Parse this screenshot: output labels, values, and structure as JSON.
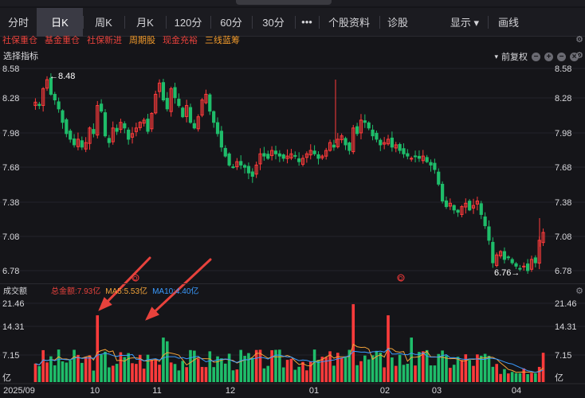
{
  "tabs": [
    "分时",
    "日K",
    "周K",
    "月K",
    "120分",
    "60分",
    "30分",
    "•••",
    "个股资料",
    "诊股",
    "显示 ▾",
    "画线"
  ],
  "active_tab": 1,
  "tools": [
    {
      "label": "社保重仓",
      "color": "#e8423c"
    },
    {
      "label": "基金重仓",
      "color": "#e8423c"
    },
    {
      "label": "社保新进",
      "color": "#e8423c"
    },
    {
      "label": "周期股",
      "color": "#f29b2b"
    },
    {
      "label": "现金充裕",
      "color": "#e8423c"
    },
    {
      "label": "三线蓝筹",
      "color": "#f29b2b"
    }
  ],
  "indicator": {
    "label": "选择指标",
    "chevron": "chevron-down-icon",
    "adjust": "前复权"
  },
  "price_axis": [
    "8.58",
    "8.28",
    "7.98",
    "7.68",
    "7.38",
    "7.08",
    "6.78"
  ],
  "high_marker": "←8.48",
  "low_marker": "6.76→",
  "volume": {
    "title": "成交额",
    "total": "总金额:7.93亿",
    "ma5": "MA5:5.53亿",
    "ma10": "MA10:4.40亿",
    "axis": [
      "21.46",
      "14.31",
      "7.15",
      "亿"
    ]
  },
  "x_axis": [
    "2025/09",
    "10",
    "11",
    "12",
    "01",
    "02",
    "03",
    "04"
  ],
  "colors": {
    "up": "#ff3b3b",
    "down": "#1fbd6a",
    "ma5": "#f2a33a",
    "ma10": "#3a9bff",
    "arrow": "#e8423c"
  },
  "chart_data": {
    "type": "candlestick",
    "close": [
      8.28,
      8.25,
      8.4,
      8.48,
      8.35,
      8.3,
      8.22,
      8.1,
      8.0,
      7.95,
      7.9,
      7.95,
      7.88,
      7.92,
      8.05,
      8.0,
      8.25,
      8.2,
      7.98,
      7.92,
      8.05,
      8.02,
      8.1,
      8.05,
      7.95,
      8.0,
      8.05,
      8.1,
      8.12,
      8.02,
      8.18,
      8.35,
      8.45,
      8.3,
      8.22,
      8.4,
      8.32,
      8.25,
      8.15,
      8.25,
      8.1,
      8.05,
      8.15,
      8.3,
      8.35,
      8.2,
      8.1,
      8.0,
      7.88,
      7.8,
      7.72,
      7.7,
      7.75,
      7.72,
      7.7,
      7.65,
      7.62,
      7.72,
      7.82,
      7.8,
      7.78,
      7.85,
      7.82,
      7.8,
      7.78,
      7.8,
      7.82,
      7.8,
      7.75,
      7.78,
      7.82,
      7.85,
      7.82,
      7.78,
      7.8,
      7.85,
      7.92,
      7.88,
      7.95,
      7.98,
      7.9,
      7.85,
      8.05,
      8.0,
      8.12,
      8.1,
      8.05,
      7.98,
      7.95,
      7.9,
      7.92,
      7.95,
      7.88,
      7.9,
      7.85,
      7.82,
      7.8,
      7.78,
      7.8,
      7.78,
      7.8,
      7.75,
      7.72,
      7.68,
      7.55,
      7.4,
      7.35,
      7.38,
      7.32,
      7.3,
      7.35,
      7.38,
      7.32,
      7.36,
      7.4,
      7.28,
      7.18,
      7.05,
      6.85,
      6.92,
      6.95,
      6.88,
      6.9,
      6.85,
      6.82,
      6.8,
      6.82,
      6.78,
      6.88,
      6.85,
      7.05,
      7.12
    ]
  }
}
